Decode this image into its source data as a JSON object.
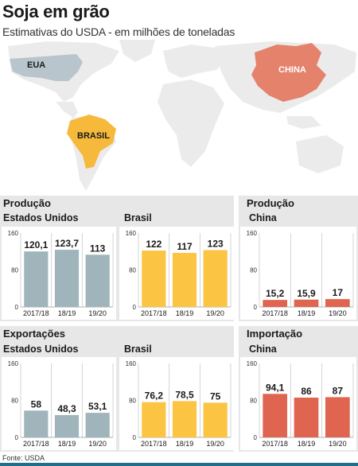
{
  "title": "Soja em grão",
  "subtitle": "Estimativas do USDA - em milhões de toneladas",
  "map": {
    "labels": {
      "usa": "EUA",
      "brazil": "BRASIL",
      "china": "CHINA"
    },
    "colors": {
      "land": "#ebebeb",
      "usa": "#b8c5cc",
      "brazil": "#f6b93b",
      "china": "#e4826c"
    }
  },
  "sections": {
    "production": "Produção",
    "production_china": "Produção",
    "exports": "Exportações",
    "imports": "Importação"
  },
  "countries": {
    "us": "Estados Unidos",
    "br": "Brasil",
    "cn": "China"
  },
  "footer": "Fonte: USDA",
  "colors": {
    "us": "#9fb5bb",
    "br": "#fbc443",
    "cn": "#df6550",
    "panel_bg": "#e7e7e7",
    "grid": "#c9c9c9"
  },
  "chart_data": [
    {
      "id": "prod-us",
      "type": "bar",
      "categories": [
        "2017/18",
        "18/19",
        "19/20"
      ],
      "values": [
        120.1,
        123.7,
        113
      ],
      "labels": [
        "120,1",
        "123,7",
        "113"
      ],
      "ylim": [
        0,
        160
      ],
      "yticks": [
        "0",
        "80",
        "160"
      ],
      "color": "#9fb5bb"
    },
    {
      "id": "prod-br",
      "type": "bar",
      "categories": [
        "2017/18",
        "18/19",
        "19/20"
      ],
      "values": [
        122,
        117,
        123
      ],
      "labels": [
        "122",
        "117",
        "123"
      ],
      "ylim": [
        0,
        160
      ],
      "yticks": [
        "0",
        "80",
        "160"
      ],
      "color": "#fbc443"
    },
    {
      "id": "prod-cn",
      "type": "bar",
      "categories": [
        "2017/18",
        "18/19",
        "19/20"
      ],
      "values": [
        15.2,
        15.9,
        17
      ],
      "labels": [
        "15,2",
        "15,9",
        "17"
      ],
      "ylim": [
        0,
        160
      ],
      "yticks": [
        "0",
        "80",
        "160"
      ],
      "color": "#df6550"
    },
    {
      "id": "exp-us",
      "type": "bar",
      "categories": [
        "2017/18",
        "18/19",
        "19/20"
      ],
      "values": [
        58,
        48.3,
        53.1
      ],
      "labels": [
        "58",
        "48,3",
        "53,1"
      ],
      "ylim": [
        0,
        160
      ],
      "yticks": [
        "0",
        "80",
        "160"
      ],
      "color": "#9fb5bb"
    },
    {
      "id": "exp-br",
      "type": "bar",
      "categories": [
        "2017/18",
        "18/19",
        "19/20"
      ],
      "values": [
        76.2,
        78.5,
        75
      ],
      "labels": [
        "76,2",
        "78,5",
        "75"
      ],
      "ylim": [
        0,
        160
      ],
      "yticks": [
        "0",
        "80",
        "160"
      ],
      "color": "#fbc443"
    },
    {
      "id": "imp-cn",
      "type": "bar",
      "categories": [
        "2017/18",
        "18/19",
        "19/20"
      ],
      "values": [
        94.1,
        86,
        87
      ],
      "labels": [
        "94,1",
        "86",
        "87"
      ],
      "ylim": [
        0,
        160
      ],
      "yticks": [
        "0",
        "80",
        "160"
      ],
      "color": "#df6550"
    }
  ]
}
